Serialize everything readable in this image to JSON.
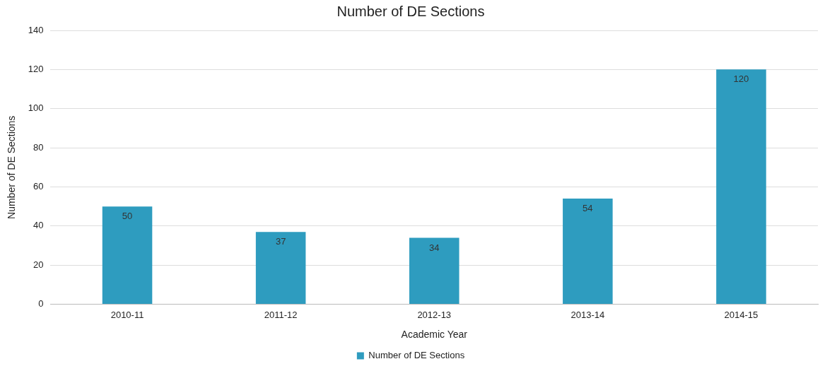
{
  "chart_data": {
    "type": "bar",
    "title": "Number of DE Sections",
    "xlabel": "Academic Year",
    "ylabel": "Number of DE Sections",
    "categories": [
      "2010-11",
      "2011-12",
      "2012-13",
      "2013-14",
      "2014-15"
    ],
    "series": [
      {
        "name": "Number of DE Sections",
        "color": "#2e9cbf",
        "values": [
          50,
          37,
          34,
          54,
          120
        ]
      }
    ],
    "ylim": [
      0,
      140
    ],
    "yticks": [
      0,
      20,
      40,
      60,
      80,
      100,
      120,
      140
    ],
    "grid": "y",
    "legend": "bottom",
    "data_labels": true
  }
}
